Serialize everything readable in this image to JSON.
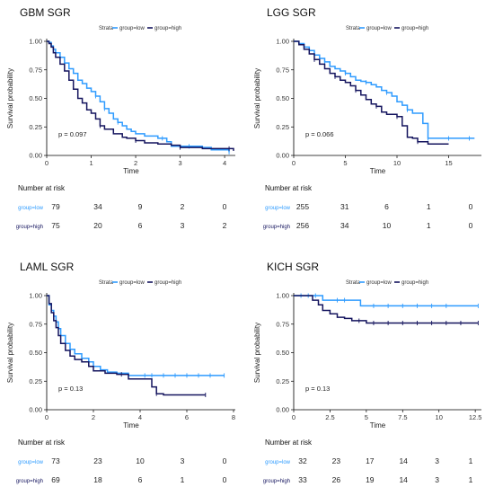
{
  "colors": {
    "low": "#2e9bff",
    "high": "#14145e",
    "axis": "#000000",
    "text": "#222222"
  },
  "common": {
    "legend_title": "Strata",
    "legend_low": "group=low",
    "legend_high": "group=high",
    "ylabel": "Survival probability",
    "xlabel": "Time",
    "risk_title": "Number at risk"
  },
  "chart_data": [
    {
      "type": "line",
      "title": "GBM SGR",
      "show_legend": true,
      "pvalue": "p = 0.097",
      "xlim": [
        0,
        4.2
      ],
      "ylim": [
        0,
        1
      ],
      "x_ticks": [
        0,
        1,
        2,
        3,
        4
      ],
      "y_ticks": [
        0.0,
        0.25,
        0.5,
        0.75,
        1.0
      ],
      "risk_times": [
        0,
        1,
        2,
        3,
        4
      ],
      "series": [
        {
          "name": "group=low",
          "key": "low",
          "x": [
            0,
            0.05,
            0.1,
            0.15,
            0.2,
            0.3,
            0.4,
            0.5,
            0.6,
            0.7,
            0.8,
            0.9,
            1.0,
            1.1,
            1.2,
            1.3,
            1.4,
            1.5,
            1.6,
            1.7,
            1.8,
            1.9,
            2.0,
            2.2,
            2.5,
            2.7,
            2.8,
            3.2,
            3.5,
            3.7,
            4.0,
            4.1
          ],
          "y": [
            1.0,
            0.99,
            0.96,
            0.93,
            0.9,
            0.86,
            0.81,
            0.76,
            0.72,
            0.66,
            0.63,
            0.59,
            0.56,
            0.52,
            0.47,
            0.41,
            0.37,
            0.32,
            0.29,
            0.26,
            0.23,
            0.21,
            0.19,
            0.17,
            0.15,
            0.12,
            0.08,
            0.08,
            0.07,
            0.05,
            0.05,
            0.03
          ],
          "censors": [
            1.1,
            1.3,
            1.6,
            2.6,
            3.2,
            4.1
          ]
        },
        {
          "name": "group=high",
          "key": "high",
          "x": [
            0,
            0.05,
            0.1,
            0.15,
            0.2,
            0.3,
            0.4,
            0.5,
            0.6,
            0.7,
            0.8,
            0.9,
            1.0,
            1.1,
            1.2,
            1.3,
            1.5,
            1.7,
            1.8,
            2.0,
            2.2,
            2.5,
            2.8,
            3.0,
            3.5,
            4.0,
            4.2
          ],
          "y": [
            1.0,
            0.98,
            0.95,
            0.9,
            0.86,
            0.8,
            0.74,
            0.66,
            0.58,
            0.5,
            0.46,
            0.4,
            0.37,
            0.32,
            0.26,
            0.23,
            0.19,
            0.16,
            0.15,
            0.13,
            0.11,
            0.1,
            0.09,
            0.07,
            0.06,
            0.06,
            0.04
          ],
          "censors": [
            1.2,
            2.0,
            3.0,
            4.1
          ]
        }
      ],
      "risk": [
        {
          "label": "group=low",
          "key": "low",
          "values": [
            "79",
            "34",
            "9",
            "2",
            "0"
          ]
        },
        {
          "label": "group=high",
          "key": "high",
          "values": [
            "75",
            "20",
            "6",
            "3",
            "2"
          ]
        }
      ]
    },
    {
      "type": "line",
      "title": "LGG SGR",
      "show_legend": true,
      "pvalue": "p = 0.066",
      "xlim": [
        0,
        18
      ],
      "ylim": [
        0,
        1
      ],
      "x_ticks": [
        0,
        5,
        10,
        15
      ],
      "y_ticks": [
        0.0,
        0.25,
        0.5,
        0.75,
        1.0
      ],
      "risk_times": [
        0,
        4.5,
        9,
        13.5,
        18
      ],
      "series": [
        {
          "name": "group=low",
          "key": "low",
          "x": [
            0,
            0.5,
            1,
            1.5,
            2,
            2.5,
            3,
            3.5,
            4,
            4.5,
            5,
            5.5,
            6,
            6.5,
            7,
            7.5,
            8,
            8.5,
            9,
            9.5,
            10,
            10.5,
            11,
            11.5,
            12,
            12.5,
            13,
            15,
            17.5
          ],
          "y": [
            1.0,
            0.98,
            0.95,
            0.92,
            0.88,
            0.85,
            0.82,
            0.78,
            0.76,
            0.74,
            0.72,
            0.69,
            0.66,
            0.65,
            0.64,
            0.62,
            0.6,
            0.57,
            0.55,
            0.52,
            0.47,
            0.44,
            0.4,
            0.37,
            0.37,
            0.28,
            0.15,
            0.15,
            0.15
          ],
          "censors": [
            3,
            5,
            7,
            9,
            11,
            13,
            15,
            17
          ]
        },
        {
          "name": "group=high",
          "key": "high",
          "x": [
            0,
            0.5,
            1,
            1.5,
            2,
            2.5,
            3,
            3.5,
            4,
            4.5,
            5,
            5.5,
            6,
            6.5,
            7,
            7.5,
            8,
            8.5,
            9,
            9.5,
            10,
            10.5,
            11,
            11.5,
            12,
            13,
            15
          ],
          "y": [
            1.0,
            0.97,
            0.93,
            0.89,
            0.84,
            0.8,
            0.76,
            0.72,
            0.69,
            0.66,
            0.64,
            0.61,
            0.57,
            0.53,
            0.49,
            0.45,
            0.43,
            0.38,
            0.36,
            0.36,
            0.34,
            0.26,
            0.16,
            0.15,
            0.12,
            0.1,
            0.1
          ],
          "censors": [
            2,
            4,
            6,
            8,
            10,
            12
          ]
        }
      ],
      "risk": [
        {
          "label": "group=low",
          "key": "low",
          "values": [
            "255",
            "31",
            "6",
            "1",
            "0"
          ]
        },
        {
          "label": "group=high",
          "key": "high",
          "values": [
            "256",
            "34",
            "10",
            "1",
            "0"
          ]
        }
      ]
    },
    {
      "type": "line",
      "title": "LAML SGR",
      "show_legend": true,
      "pvalue": "p = 0.13",
      "xlim": [
        0,
        8
      ],
      "ylim": [
        0,
        1
      ],
      "x_ticks": [
        0,
        2,
        4,
        6,
        8
      ],
      "y_ticks": [
        0.0,
        0.25,
        0.5,
        0.75,
        1.0
      ],
      "risk_times": [
        0,
        2,
        4,
        6,
        8
      ],
      "series": [
        {
          "name": "group=low",
          "key": "low",
          "x": [
            0,
            0.1,
            0.2,
            0.3,
            0.4,
            0.5,
            0.6,
            0.8,
            1.0,
            1.2,
            1.5,
            1.8,
            2.0,
            2.3,
            2.6,
            3.0,
            3.5,
            4.0,
            5.0,
            6.0,
            7.0,
            7.6
          ],
          "y": [
            1.0,
            0.92,
            0.87,
            0.82,
            0.77,
            0.71,
            0.65,
            0.58,
            0.53,
            0.49,
            0.45,
            0.42,
            0.38,
            0.35,
            0.33,
            0.32,
            0.3,
            0.3,
            0.3,
            0.3,
            0.3,
            0.3
          ],
          "censors": [
            4.2,
            4.5,
            5.0,
            5.5,
            6.0,
            6.5,
            7.0,
            7.6
          ]
        },
        {
          "name": "group=high",
          "key": "high",
          "x": [
            0,
            0.1,
            0.2,
            0.3,
            0.4,
            0.5,
            0.6,
            0.8,
            1.0,
            1.2,
            1.5,
            1.8,
            2.0,
            2.5,
            3.0,
            3.5,
            4.5,
            4.7,
            5.0,
            6.0,
            6.8
          ],
          "y": [
            1.0,
            0.93,
            0.85,
            0.78,
            0.72,
            0.65,
            0.58,
            0.52,
            0.47,
            0.44,
            0.42,
            0.38,
            0.34,
            0.32,
            0.31,
            0.27,
            0.2,
            0.14,
            0.13,
            0.13,
            0.13
          ],
          "censors": [
            3.2,
            4.7,
            6.8
          ]
        }
      ],
      "risk": [
        {
          "label": "group=low",
          "key": "low",
          "values": [
            "73",
            "23",
            "10",
            "3",
            "0"
          ]
        },
        {
          "label": "group=high",
          "key": "high",
          "values": [
            "69",
            "18",
            "6",
            "1",
            "0"
          ]
        }
      ]
    },
    {
      "type": "line",
      "title": "KICH SGR",
      "show_legend": true,
      "pvalue": "p = 0.13",
      "xlim": [
        0,
        12.8
      ],
      "ylim": [
        0,
        1
      ],
      "x_ticks": [
        0,
        2.5,
        5,
        7.5,
        10,
        12.5
      ],
      "y_ticks": [
        0.0,
        0.25,
        0.5,
        0.75,
        1.0
      ],
      "risk_times": [
        0,
        2.5,
        5,
        7.5,
        10,
        12.5
      ],
      "series": [
        {
          "name": "group=low",
          "key": "low",
          "x": [
            0,
            2.0,
            4.6,
            12.7
          ],
          "y": [
            1.0,
            0.96,
            0.91,
            0.91
          ],
          "censors": [
            0.5,
            1.0,
            1.5,
            3.0,
            3.5,
            5.5,
            6.5,
            7.5,
            8.5,
            9.5,
            10.5,
            12.7
          ]
        },
        {
          "name": "group=high",
          "key": "high",
          "x": [
            0,
            1.3,
            1.7,
            2.0,
            2.5,
            3.0,
            3.5,
            4.0,
            5.0,
            12.7
          ],
          "y": [
            1.0,
            0.96,
            0.92,
            0.87,
            0.84,
            0.81,
            0.8,
            0.78,
            0.76,
            0.76
          ],
          "censors": [
            4.5,
            5.5,
            6.5,
            7.5,
            8.5,
            9.5,
            10.5,
            11.5,
            12.7
          ]
        }
      ],
      "risk": [
        {
          "label": "group=low",
          "key": "low",
          "values": [
            "32",
            "23",
            "17",
            "14",
            "3",
            "1"
          ]
        },
        {
          "label": "group=high",
          "key": "high",
          "values": [
            "33",
            "26",
            "19",
            "14",
            "3",
            "1"
          ]
        }
      ]
    }
  ]
}
